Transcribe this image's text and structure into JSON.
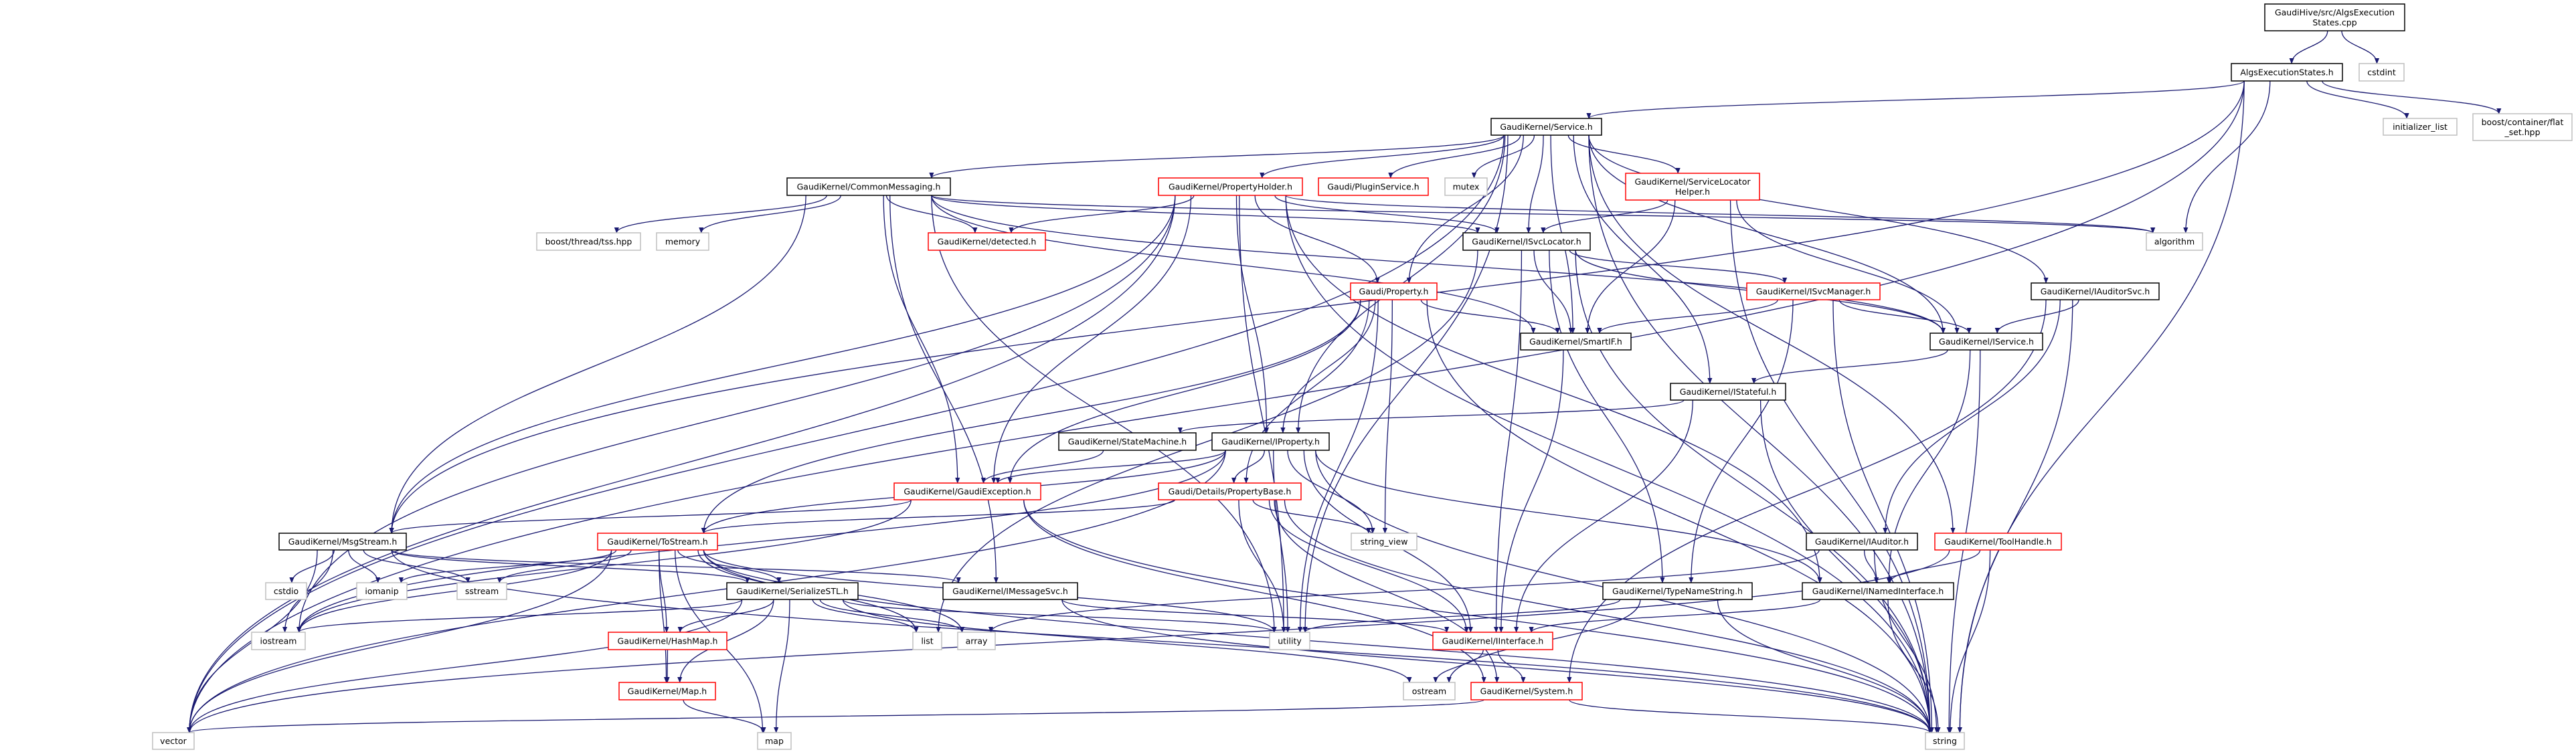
{
  "colors": {
    "edge": "#191970",
    "root_fill": "#bfbfbf",
    "documented_border": "#000000",
    "truncated_border": "#ff0000",
    "external_border": "#bfbfbf"
  },
  "nodes": [
    {
      "id": "cpp",
      "label": [
        "GaudiHive/src/AlgsExecution",
        "States.cpp"
      ],
      "kind": "root"
    },
    {
      "id": "aes",
      "label": [
        "AlgsExecutionStates.h"
      ],
      "kind": "documented"
    },
    {
      "id": "cstdint",
      "label": [
        "cstdint"
      ],
      "kind": "external"
    },
    {
      "id": "service",
      "label": [
        "GaudiKernel/Service.h"
      ],
      "kind": "documented"
    },
    {
      "id": "initlist",
      "label": [
        "initializer_list"
      ],
      "kind": "external"
    },
    {
      "id": "flatset",
      "label": [
        "boost/container/flat",
        "_set.hpp"
      ],
      "kind": "external"
    },
    {
      "id": "commonmsg",
      "label": [
        "GaudiKernel/CommonMessaging.h"
      ],
      "kind": "documented"
    },
    {
      "id": "propholder",
      "label": [
        "GaudiKernel/PropertyHolder.h"
      ],
      "kind": "truncated"
    },
    {
      "id": "pluginsvc",
      "label": [
        "Gaudi/PluginService.h"
      ],
      "kind": "truncated"
    },
    {
      "id": "mutex",
      "label": [
        "mutex"
      ],
      "kind": "external"
    },
    {
      "id": "svclochelper",
      "label": [
        "GaudiKernel/ServiceLocator",
        "Helper.h"
      ],
      "kind": "truncated"
    },
    {
      "id": "tss",
      "label": [
        "boost/thread/tss.hpp"
      ],
      "kind": "external"
    },
    {
      "id": "memory",
      "label": [
        "memory"
      ],
      "kind": "external"
    },
    {
      "id": "detected",
      "label": [
        "GaudiKernel/detected.h"
      ],
      "kind": "truncated"
    },
    {
      "id": "isvcloc",
      "label": [
        "GaudiKernel/ISvcLocator.h"
      ],
      "kind": "documented"
    },
    {
      "id": "algorithm",
      "label": [
        "algorithm"
      ],
      "kind": "external"
    },
    {
      "id": "property",
      "label": [
        "Gaudi/Property.h"
      ],
      "kind": "truncated"
    },
    {
      "id": "isvcmgr",
      "label": [
        "GaudiKernel/ISvcManager.h"
      ],
      "kind": "truncated"
    },
    {
      "id": "iauditorsvc",
      "label": [
        "GaudiKernel/IAuditorSvc.h"
      ],
      "kind": "documented"
    },
    {
      "id": "smartif",
      "label": [
        "GaudiKernel/SmartIF.h"
      ],
      "kind": "documented"
    },
    {
      "id": "iservice",
      "label": [
        "GaudiKernel/IService.h"
      ],
      "kind": "documented"
    },
    {
      "id": "istateful",
      "label": [
        "GaudiKernel/IStateful.h"
      ],
      "kind": "documented"
    },
    {
      "id": "statemachine",
      "label": [
        "GaudiKernel/StateMachine.h"
      ],
      "kind": "documented"
    },
    {
      "id": "iproperty",
      "label": [
        "GaudiKernel/IProperty.h"
      ],
      "kind": "documented"
    },
    {
      "id": "gaudiexc",
      "label": [
        "GaudiKernel/GaudiException.h"
      ],
      "kind": "truncated"
    },
    {
      "id": "propbase",
      "label": [
        "Gaudi/Details/PropertyBase.h"
      ],
      "kind": "truncated"
    },
    {
      "id": "msgstream",
      "label": [
        "GaudiKernel/MsgStream.h"
      ],
      "kind": "documented"
    },
    {
      "id": "tostream",
      "label": [
        "GaudiKernel/ToStream.h"
      ],
      "kind": "truncated"
    },
    {
      "id": "stringview",
      "label": [
        "string_view"
      ],
      "kind": "external"
    },
    {
      "id": "iauditor",
      "label": [
        "GaudiKernel/IAuditor.h"
      ],
      "kind": "documented"
    },
    {
      "id": "toolhandle",
      "label": [
        "GaudiKernel/ToolHandle.h"
      ],
      "kind": "truncated"
    },
    {
      "id": "cstdio",
      "label": [
        "cstdio"
      ],
      "kind": "external"
    },
    {
      "id": "iomanip",
      "label": [
        "iomanip"
      ],
      "kind": "external"
    },
    {
      "id": "sstream",
      "label": [
        "sstream"
      ],
      "kind": "external"
    },
    {
      "id": "serializestl",
      "label": [
        "GaudiKernel/SerializeSTL.h"
      ],
      "kind": "documented"
    },
    {
      "id": "imessagesvc",
      "label": [
        "GaudiKernel/IMessageSvc.h"
      ],
      "kind": "documented"
    },
    {
      "id": "typenamestring",
      "label": [
        "GaudiKernel/TypeNameString.h"
      ],
      "kind": "documented"
    },
    {
      "id": "inamedinterface",
      "label": [
        "GaudiKernel/INamedInterface.h"
      ],
      "kind": "documented"
    },
    {
      "id": "iostream",
      "label": [
        "iostream"
      ],
      "kind": "external"
    },
    {
      "id": "hashmap",
      "label": [
        "GaudiKernel/HashMap.h"
      ],
      "kind": "truncated"
    },
    {
      "id": "list",
      "label": [
        "list"
      ],
      "kind": "external"
    },
    {
      "id": "array",
      "label": [
        "array"
      ],
      "kind": "external"
    },
    {
      "id": "utility",
      "label": [
        "utility"
      ],
      "kind": "external"
    },
    {
      "id": "iinterface",
      "label": [
        "GaudiKernel/IInterface.h"
      ],
      "kind": "truncated"
    },
    {
      "id": "map_h",
      "label": [
        "GaudiKernel/Map.h"
      ],
      "kind": "truncated"
    },
    {
      "id": "ostream",
      "label": [
        "ostream"
      ],
      "kind": "external"
    },
    {
      "id": "system",
      "label": [
        "GaudiKernel/System.h"
      ],
      "kind": "truncated"
    },
    {
      "id": "vector",
      "label": [
        "vector"
      ],
      "kind": "external"
    },
    {
      "id": "map",
      "label": [
        "map"
      ],
      "kind": "external"
    },
    {
      "id": "string",
      "label": [
        "string"
      ],
      "kind": "external"
    }
  ],
  "edges": [
    [
      "cpp",
      "aes"
    ],
    [
      "cpp",
      "cstdint"
    ],
    [
      "aes",
      "service"
    ],
    [
      "aes",
      "vector"
    ],
    [
      "aes",
      "msgstream"
    ],
    [
      "aes",
      "algorithm"
    ],
    [
      "aes",
      "string"
    ],
    [
      "aes",
      "initlist"
    ],
    [
      "aes",
      "flatset"
    ],
    [
      "service",
      "commonmsg"
    ],
    [
      "service",
      "propholder"
    ],
    [
      "service",
      "pluginsvc"
    ],
    [
      "service",
      "mutex"
    ],
    [
      "service",
      "svclochelper"
    ],
    [
      "service",
      "isvcloc"
    ],
    [
      "service",
      "property"
    ],
    [
      "service",
      "smartif"
    ],
    [
      "service",
      "iproperty"
    ],
    [
      "service",
      "iservice"
    ],
    [
      "service",
      "istateful"
    ],
    [
      "service",
      "iauditorsvc"
    ],
    [
      "service",
      "toolhandle"
    ],
    [
      "service",
      "vector"
    ],
    [
      "service",
      "string"
    ],
    [
      "service",
      "utility"
    ],
    [
      "commonmsg",
      "tss"
    ],
    [
      "commonmsg",
      "memory"
    ],
    [
      "commonmsg",
      "detected"
    ],
    [
      "commonmsg",
      "isvcloc"
    ],
    [
      "commonmsg",
      "smartif"
    ],
    [
      "commonmsg",
      "msgstream"
    ],
    [
      "commonmsg",
      "imessagesvc"
    ],
    [
      "commonmsg",
      "gaudiexc"
    ],
    [
      "commonmsg",
      "utility"
    ],
    [
      "commonmsg",
      "algorithm"
    ],
    [
      "commonmsg",
      "iservice"
    ],
    [
      "propholder",
      "detected"
    ],
    [
      "propholder",
      "isvcloc"
    ],
    [
      "propholder",
      "property"
    ],
    [
      "propholder",
      "iproperty"
    ],
    [
      "propholder",
      "msgstream"
    ],
    [
      "propholder",
      "iostream"
    ],
    [
      "propholder",
      "vector"
    ],
    [
      "propholder",
      "utility"
    ],
    [
      "propholder",
      "string"
    ],
    [
      "propholder",
      "algorithm"
    ],
    [
      "propholder",
      "inamedinterface"
    ],
    [
      "propholder",
      "gaudiexc"
    ],
    [
      "svclochelper",
      "isvcloc"
    ],
    [
      "svclochelper",
      "smartif"
    ],
    [
      "svclochelper",
      "iservice"
    ],
    [
      "svclochelper",
      "string"
    ],
    [
      "isvcloc",
      "smartif"
    ],
    [
      "isvcloc",
      "iinterface"
    ],
    [
      "isvcloc",
      "isvcmgr"
    ],
    [
      "isvcloc",
      "iservice"
    ],
    [
      "isvcloc",
      "typenamestring"
    ],
    [
      "isvcloc",
      "string"
    ],
    [
      "isvcloc",
      "list"
    ],
    [
      "property",
      "iproperty"
    ],
    [
      "property",
      "propbase"
    ],
    [
      "property",
      "smartif"
    ],
    [
      "property",
      "tostream"
    ],
    [
      "property",
      "stringview"
    ],
    [
      "property",
      "utility"
    ],
    [
      "property",
      "string"
    ],
    [
      "property",
      "gaudiexc"
    ],
    [
      "isvcmgr",
      "smartif"
    ],
    [
      "isvcmgr",
      "iservice"
    ],
    [
      "isvcmgr",
      "typenamestring"
    ],
    [
      "isvcmgr",
      "string"
    ],
    [
      "iauditorsvc",
      "iservice"
    ],
    [
      "iauditorsvc",
      "iauditor"
    ],
    [
      "iauditorsvc",
      "system"
    ],
    [
      "iauditorsvc",
      "string"
    ],
    [
      "iservice",
      "istateful"
    ],
    [
      "iservice",
      "inamedinterface"
    ],
    [
      "iservice",
      "string"
    ],
    [
      "istateful",
      "statemachine"
    ],
    [
      "istateful",
      "iinterface"
    ],
    [
      "istateful",
      "string"
    ],
    [
      "statemachine",
      "gaudiexc"
    ],
    [
      "iproperty",
      "gaudiexc"
    ],
    [
      "iproperty",
      "propbase"
    ],
    [
      "iproperty",
      "tostream"
    ],
    [
      "iproperty",
      "stringview"
    ],
    [
      "iproperty",
      "iostream"
    ],
    [
      "iproperty",
      "vector"
    ],
    [
      "iproperty",
      "string"
    ],
    [
      "iproperty",
      "inamedinterface"
    ],
    [
      "iproperty",
      "utility"
    ],
    [
      "iproperty",
      "iinterface"
    ],
    [
      "gaudiexc",
      "msgstream"
    ],
    [
      "gaudiexc",
      "system"
    ],
    [
      "gaudiexc",
      "string"
    ],
    [
      "gaudiexc",
      "iostream"
    ],
    [
      "propbase",
      "tostream"
    ],
    [
      "propbase",
      "stringview"
    ],
    [
      "propbase",
      "utility"
    ],
    [
      "propbase",
      "iinterface"
    ],
    [
      "propbase",
      "string"
    ],
    [
      "propbase",
      "system"
    ],
    [
      "msgstream",
      "cstdio"
    ],
    [
      "msgstream",
      "iomanip"
    ],
    [
      "msgstream",
      "sstream"
    ],
    [
      "msgstream",
      "iostream"
    ],
    [
      "msgstream",
      "vector"
    ],
    [
      "msgstream",
      "string"
    ],
    [
      "msgstream",
      "serializestl"
    ],
    [
      "msgstream",
      "imessagesvc"
    ],
    [
      "tostream",
      "iomanip"
    ],
    [
      "tostream",
      "sstream"
    ],
    [
      "tostream",
      "iostream"
    ],
    [
      "tostream",
      "vector"
    ],
    [
      "tostream",
      "hashmap"
    ],
    [
      "tostream",
      "map_h"
    ],
    [
      "tostream",
      "map"
    ],
    [
      "tostream",
      "serializestl"
    ],
    [
      "tostream",
      "list"
    ],
    [
      "tostream",
      "array"
    ],
    [
      "tostream",
      "utility"
    ],
    [
      "tostream",
      "string"
    ],
    [
      "serializestl",
      "hashmap"
    ],
    [
      "serializestl",
      "map_h"
    ],
    [
      "serializestl",
      "map"
    ],
    [
      "serializestl",
      "vector"
    ],
    [
      "serializestl",
      "array"
    ],
    [
      "serializestl",
      "list"
    ],
    [
      "serializestl",
      "iostream"
    ],
    [
      "serializestl",
      "ostream"
    ],
    [
      "serializestl",
      "utility"
    ],
    [
      "hashmap",
      "map_h"
    ],
    [
      "map_h",
      "map"
    ],
    [
      "imessagesvc",
      "iinterface"
    ],
    [
      "imessagesvc",
      "string"
    ],
    [
      "typenamestring",
      "utility"
    ],
    [
      "typenamestring",
      "ostream"
    ],
    [
      "typenamestring",
      "string"
    ],
    [
      "iauditor",
      "inamedinterface"
    ],
    [
      "iauditor",
      "string"
    ],
    [
      "iauditor",
      "array"
    ],
    [
      "toolhandle",
      "inamedinterface"
    ],
    [
      "toolhandle",
      "string"
    ],
    [
      "toolhandle",
      "vector"
    ],
    [
      "inamedinterface",
      "iinterface"
    ],
    [
      "inamedinterface",
      "string"
    ],
    [
      "iinterface",
      "ostream"
    ],
    [
      "iinterface",
      "system"
    ],
    [
      "system",
      "string"
    ],
    [
      "system",
      "vector"
    ],
    [
      "smartif",
      "iinterface"
    ]
  ]
}
